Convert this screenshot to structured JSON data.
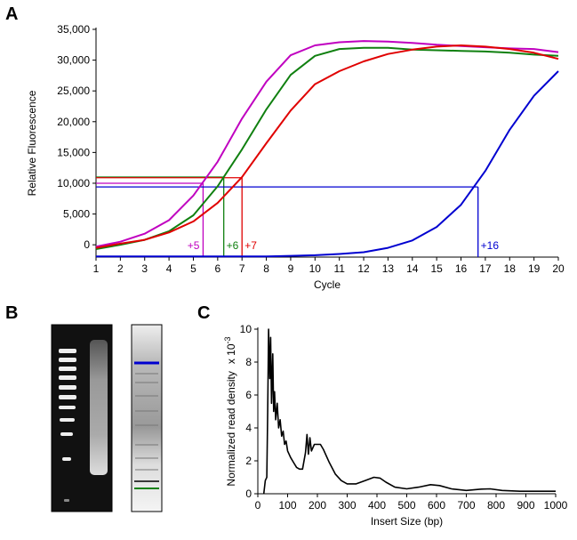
{
  "panel_labels": [
    "A",
    "B",
    "C"
  ],
  "chart_data": [
    {
      "type": "line",
      "xlabel": "Cycle",
      "ylabel": "Relative Fluorescence",
      "x": [
        1,
        2,
        3,
        4,
        5,
        6,
        7,
        8,
        9,
        10,
        11,
        12,
        13,
        14,
        15,
        16,
        17,
        18,
        19,
        20
      ],
      "xlim": [
        1,
        20
      ],
      "xticks": [
        1,
        2,
        3,
        4,
        5,
        6,
        7,
        8,
        9,
        10,
        11,
        12,
        13,
        14,
        15,
        16,
        17,
        18,
        19,
        20
      ],
      "ylim": [
        -2000,
        35000
      ],
      "yticks": [
        0,
        {
          "value": 5000,
          "label": "5,000"
        },
        {
          "value": 10000,
          "label": "10,000"
        },
        {
          "value": 15000,
          "label": "15,000"
        },
        {
          "value": 20000,
          "label": "20,000"
        },
        {
          "value": 25000,
          "label": "25,000"
        },
        {
          "value": 30000,
          "label": "30,000"
        },
        {
          "value": 35000,
          "label": "35,000"
        }
      ],
      "series": [
        {
          "color": "#c000c0",
          "values": [
            -300,
            500,
            1800,
            4000,
            8000,
            13500,
            20500,
            26500,
            30800,
            32400,
            32900,
            33100,
            33000,
            32800,
            32500,
            32300,
            32100,
            31900,
            31800,
            31300
          ]
        },
        {
          "color": "#108010",
          "values": [
            -700,
            0,
            800,
            2200,
            4800,
            9500,
            15500,
            22000,
            27600,
            30700,
            31800,
            32000,
            32000,
            31700,
            31600,
            31500,
            31400,
            31200,
            30900,
            30700
          ]
        },
        {
          "color": "#e00000",
          "values": [
            -500,
            200,
            800,
            2000,
            3800,
            6800,
            11000,
            16500,
            21800,
            26100,
            28200,
            29800,
            31000,
            31700,
            32200,
            32400,
            32200,
            31800,
            31200,
            30200
          ]
        },
        {
          "color": "#0000d0",
          "values": [
            -1900,
            -1900,
            -1900,
            -1900,
            -1900,
            -1900,
            -1900,
            -1900,
            -1800,
            -1700,
            -1500,
            -1200,
            -500,
            700,
            2900,
            6500,
            12000,
            18700,
            24200,
            28200
          ]
        }
      ],
      "thresholds": [
        {
          "label": "+5",
          "x": 5.4,
          "y": 10000,
          "color": "#c000c0",
          "label_side": "left"
        },
        {
          "label": "+6",
          "x": 6.25,
          "y": 11000,
          "color": "#108010",
          "label_side": "right"
        },
        {
          "label": "+7",
          "x": 7.0,
          "y": 10900,
          "color": "#e00000",
          "label_side": "right"
        },
        {
          "label": "+16",
          "x": 16.7,
          "y": 9400,
          "color": "#0000d0",
          "label_side": "right"
        }
      ]
    },
    {
      "type": "line",
      "xlabel": "Insert Size (bp)",
      "ylabel": "Normalized read density",
      "ylabel_scale": "x 10",
      "ylabel_exponent": "-3",
      "color": "#000000",
      "x": [
        20,
        25,
        30,
        33,
        36,
        40,
        43,
        46,
        50,
        53,
        56,
        60,
        65,
        70,
        75,
        80,
        85,
        90,
        95,
        100,
        110,
        120,
        130,
        140,
        150,
        160,
        165,
        170,
        175,
        180,
        190,
        200,
        210,
        220,
        240,
        260,
        280,
        300,
        330,
        360,
        390,
        410,
        430,
        460,
        500,
        540,
        580,
        610,
        650,
        700,
        750,
        780,
        820,
        880,
        950,
        1000
      ],
      "values": [
        0,
        0.8,
        1.0,
        5,
        10,
        7,
        9.5,
        5.5,
        8.5,
        5,
        6.2,
        4.5,
        5.5,
        4,
        4.5,
        3.5,
        3.8,
        3,
        3.2,
        2.6,
        2.2,
        1.9,
        1.6,
        1.5,
        1.5,
        2.5,
        3.6,
        2.4,
        3.4,
        2.6,
        3.0,
        3.0,
        3.0,
        2.7,
        1.9,
        1.2,
        0.8,
        0.6,
        0.6,
        0.8,
        1.0,
        0.95,
        0.7,
        0.4,
        0.3,
        0.4,
        0.55,
        0.5,
        0.3,
        0.2,
        0.28,
        0.3,
        0.2,
        0.15,
        0.15,
        0.15
      ],
      "xlim": [
        0,
        1000
      ],
      "xticks": [
        0,
        100,
        200,
        300,
        400,
        500,
        600,
        700,
        800,
        900,
        1000
      ],
      "ylim": [
        0,
        10
      ],
      "yticks": [
        0,
        2,
        4,
        6,
        8,
        10
      ]
    }
  ]
}
